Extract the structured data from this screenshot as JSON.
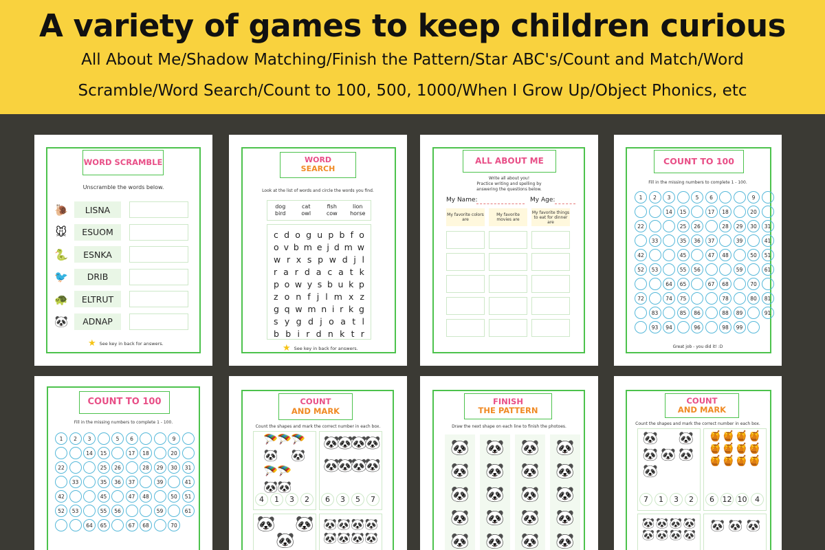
{
  "banner": {
    "title": "A variety of games to keep children curious",
    "subtitle_line1": "All About Me/Shadow Matching/Finish the Pattern/Star ABC's/Count and Match/Word",
    "subtitle_line2": "Scramble/Word Search/Count to 100, 500, 1000/When I Grow Up/Object Phonics, etc"
  },
  "word_scramble": {
    "title": "WORD SCRAMBLE",
    "instruction": "Unscramble the words below.",
    "rows": [
      {
        "icon": "snail-icon",
        "glyph": "🐌",
        "word": "LISNA"
      },
      {
        "icon": "mouse-icon",
        "glyph": "🐭",
        "word": "ESUOM"
      },
      {
        "icon": "snake-icon",
        "glyph": "🐍",
        "word": "ESNKA"
      },
      {
        "icon": "bird-icon",
        "glyph": "🐦",
        "word": "DRIB"
      },
      {
        "icon": "turtle-icon",
        "glyph": "🐢",
        "word": "ELTRUT"
      },
      {
        "icon": "panda-icon",
        "glyph": "🐼",
        "word": "ADNAP"
      }
    ],
    "footer": "See key in back for answers."
  },
  "word_search": {
    "title_line1": "WORD",
    "title_line2": "SEARCH",
    "instruction": "Look at the list of words and circle the words you find.",
    "words": [
      "dog",
      "cat",
      "fish",
      "lion",
      "bird",
      "owl",
      "cow",
      "horse"
    ],
    "grid": [
      "cdogupbfo",
      "ovbmejdmw",
      "wrxspwdjl",
      "rardacatk",
      "powysbukp",
      "zonfjlmxz",
      "gqwmnirkg",
      "sygdjoatl",
      "bbirdnktr"
    ],
    "footer": "See key in back for answers."
  },
  "all_about_me": {
    "title": "ALL ABOUT ME",
    "instruction_line1": "Write all about you!",
    "instruction_line2": "Practice writing and spelling by",
    "instruction_line3": "answering the questions below.",
    "name_label": "My Name:",
    "age_label": "My Age:",
    "headers": [
      "My favorite colors are",
      "My favorite movies are",
      "My favorite things to eat for dinner are"
    ]
  },
  "count_to_100_a": {
    "title": "COUNT TO 100",
    "instruction": "Fill in the missing numbers to complete 1 - 100.",
    "cells": [
      "1",
      "2",
      "3",
      "",
      "5",
      "6",
      "",
      "",
      "9",
      "",
      "",
      "",
      "14",
      "15",
      "",
      "17",
      "18",
      "",
      "20",
      "",
      "22",
      "",
      "",
      "25",
      "26",
      "",
      "28",
      "29",
      "30",
      "31",
      "",
      "33",
      "",
      "35",
      "36",
      "37",
      "",
      "39",
      "",
      "41",
      "42",
      "",
      "",
      "45",
      "",
      "47",
      "48",
      "",
      "50",
      "51",
      "52",
      "53",
      "",
      "55",
      "56",
      "",
      "",
      "59",
      "",
      "61",
      "",
      "",
      "64",
      "65",
      "",
      "67",
      "68",
      "",
      "70",
      "",
      "72",
      "",
      "74",
      "75",
      "",
      "",
      "78",
      "",
      "80",
      "81",
      "",
      "83",
      "",
      "85",
      "86",
      "",
      "88",
      "89",
      "",
      "91",
      "",
      "93",
      "94",
      "",
      "96",
      "",
      "98",
      "99",
      ""
    ],
    "footer": "Great job - you did it! :D"
  },
  "count_to_100_b": {
    "title": "COUNT TO 100",
    "instruction": "Fill in the missing numbers to complete 1 - 100.",
    "cells": [
      "1",
      "2",
      "3",
      "",
      "5",
      "6",
      "",
      "",
      "9",
      "",
      "",
      "",
      "14",
      "15",
      "",
      "17",
      "18",
      "",
      "20",
      "",
      "22",
      "",
      "",
      "25",
      "26",
      "",
      "28",
      "29",
      "30",
      "31",
      "",
      "33",
      "",
      "35",
      "36",
      "37",
      "",
      "39",
      "",
      "41",
      "42",
      "",
      "",
      "45",
      "",
      "47",
      "48",
      "",
      "50",
      "51",
      "52",
      "53",
      "",
      "55",
      "56",
      "",
      "",
      "59",
      "",
      "61",
      "",
      "",
      "64",
      "65",
      "",
      "67",
      "68",
      "",
      "70"
    ]
  },
  "count_and_mark_a": {
    "title_line1": "COUNT",
    "title_line2": "AND MARK",
    "instruction": "Count the shapes and mark the correct number in each box.",
    "box1_numbers": [
      "4",
      "1",
      "3",
      "2"
    ],
    "box2_numbers": [
      "6",
      "3",
      "5",
      "7"
    ]
  },
  "finish_the_pattern": {
    "title_line1": "FINISH",
    "title_line2": "THE PATTERN",
    "instruction": "Draw the next shape on each line to finish the photoes."
  },
  "count_and_mark_b": {
    "title_line1": "COUNT",
    "title_line2": "AND MARK",
    "instruction": "Count the shapes and mark the correct number in each box.",
    "box1_numbers": [
      "7",
      "1",
      "3",
      "2"
    ],
    "box2_numbers": [
      "6",
      "12",
      "10",
      "4"
    ]
  },
  "colors": {
    "banner": "#f9d23e",
    "background": "#3b3a34",
    "frame_green": "#4cc24c",
    "circle_blue": "#55b8d9"
  }
}
